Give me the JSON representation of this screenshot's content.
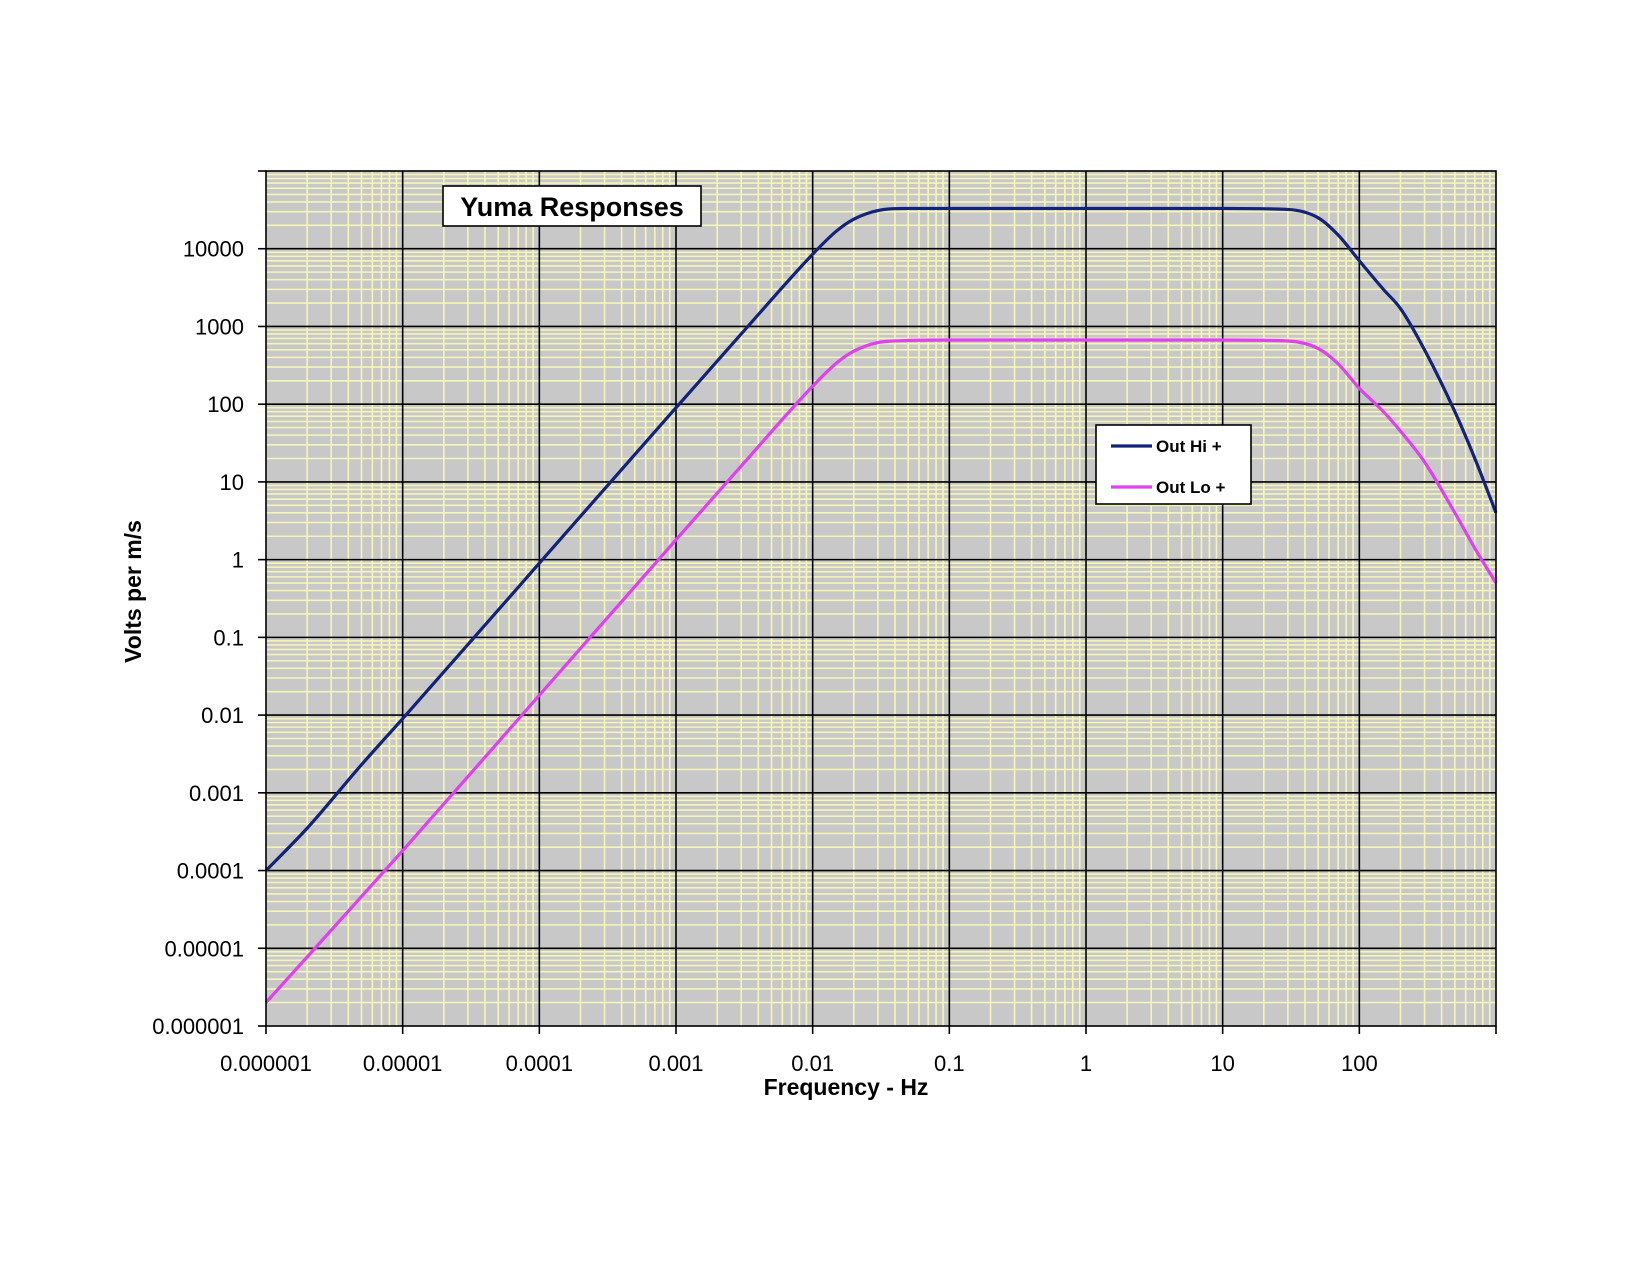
{
  "chart_data": {
    "type": "line",
    "title": "Yuma Responses",
    "xlabel": "Frequency - Hz",
    "ylabel": "Volts per m/s",
    "xscale": "log",
    "yscale": "log",
    "xlim": [
      1e-06,
      1000
    ],
    "ylim": [
      1e-06,
      100000
    ],
    "x_ticks": [
      "0.000001",
      "0.00001",
      "0.0001",
      "0.001",
      "0.01",
      "0.1",
      "1",
      "10",
      "100"
    ],
    "y_ticks": [
      "0.000001",
      "0.00001",
      "0.0001",
      "0.001",
      "0.01",
      "0.1",
      "1",
      "10",
      "100",
      "1000",
      "10000"
    ],
    "grid": true,
    "minor_grid": true,
    "legend_position": "center-right",
    "colors": {
      "plot_background": "#c8c8c8",
      "minor_grid": "#f5f5b8",
      "major_grid": "#000000",
      "Out Hi +": "#13237a",
      "Out Lo +": "#e040f0"
    },
    "series": [
      {
        "name": "Out Hi +",
        "x": [
          1e-06,
          2e-06,
          5e-06,
          1e-05,
          0.0001,
          0.001,
          0.003,
          0.01,
          0.015,
          0.02,
          0.03,
          0.05,
          0.1,
          1,
          10,
          30,
          50,
          70,
          100,
          150,
          200,
          300,
          500,
          700,
          1000
        ],
        "y": [
          0.0001,
          0.00035,
          0.0023,
          0.009,
          0.9,
          90,
          800,
          8500,
          17000,
          24000,
          31000,
          33000,
          33000,
          33000,
          33000,
          32000,
          25000,
          15000,
          7000,
          3000,
          1700,
          500,
          80,
          20,
          4
        ]
      },
      {
        "name": "Out Lo +",
        "x": [
          1e-06,
          1e-05,
          0.0001,
          0.001,
          0.003,
          0.01,
          0.015,
          0.02,
          0.03,
          0.05,
          0.1,
          1,
          10,
          30,
          50,
          70,
          100,
          150,
          200,
          300,
          500,
          700,
          1000
        ],
        "y": [
          2e-06,
          0.00018,
          0.018,
          1.8,
          16,
          170,
          340,
          480,
          620,
          660,
          670,
          670,
          670,
          650,
          520,
          330,
          160,
          80,
          45,
          18,
          4,
          1.4,
          0.5
        ]
      }
    ]
  }
}
